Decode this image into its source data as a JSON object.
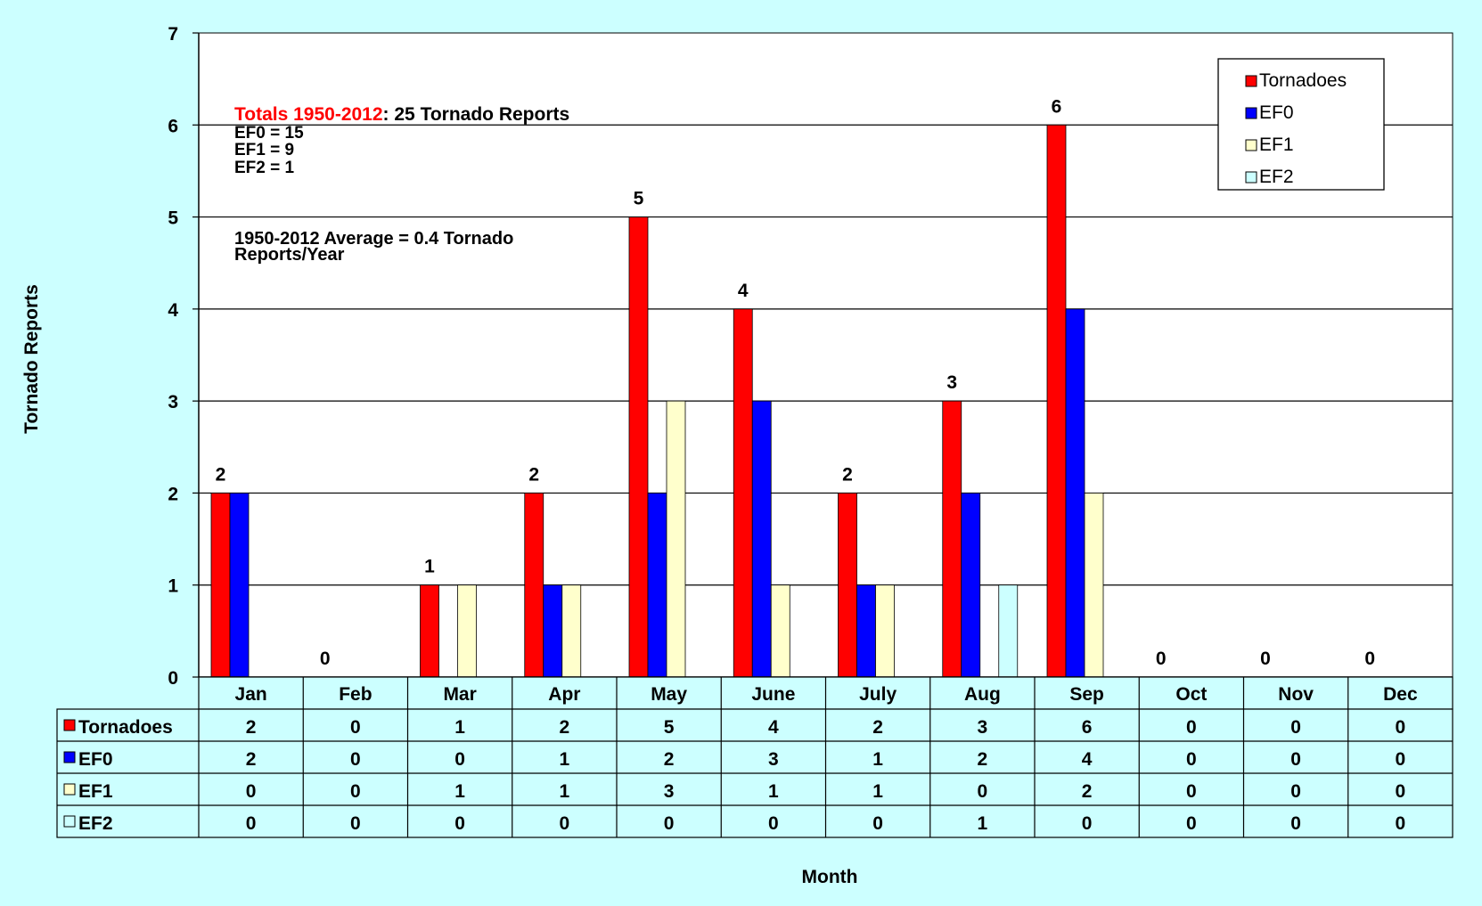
{
  "chart_data": {
    "type": "bar",
    "xlabel": "Month",
    "ylabel": "Tornado Reports",
    "ylim": [
      0,
      7
    ],
    "yticks": [
      0,
      1,
      2,
      3,
      4,
      5,
      6,
      7
    ],
    "grid": true,
    "legend_position": "top-right",
    "categories": [
      "Jan",
      "Feb",
      "Mar",
      "Apr",
      "May",
      "June",
      "July",
      "Aug",
      "Sep",
      "Oct",
      "Nov",
      "Dec"
    ],
    "series": [
      {
        "name": "Tornadoes",
        "color": "#ff0000",
        "values": [
          2,
          0,
          1,
          2,
          5,
          4,
          2,
          3,
          6,
          0,
          0,
          0
        ]
      },
      {
        "name": "EF0",
        "color": "#0000ff",
        "values": [
          2,
          0,
          0,
          1,
          2,
          3,
          1,
          2,
          4,
          0,
          0,
          0
        ]
      },
      {
        "name": "EF1",
        "color": "#ffffcc",
        "values": [
          0,
          0,
          1,
          1,
          3,
          1,
          1,
          0,
          2,
          0,
          0,
          0
        ]
      },
      {
        "name": "EF2",
        "color": "#ccffff",
        "values": [
          0,
          0,
          0,
          0,
          0,
          0,
          0,
          1,
          0,
          0,
          0,
          0
        ]
      }
    ],
    "data_labels": [
      2,
      0,
      1,
      2,
      5,
      4,
      2,
      3,
      6,
      0,
      0,
      0
    ],
    "annotations": {
      "totals_label": "Totals 1950-2012",
      "totals_rest": ": 25 Tornado Reports",
      "ef0": "EF0 = 15",
      "ef1": "EF1 = 9",
      "ef2": "EF2 = 1",
      "average_line1": "1950-2012 Average = 0.4 Tornado",
      "average_line2": "Reports/Year"
    },
    "data_table": true
  },
  "colors": {
    "background": "#ccffff",
    "plot_background": "#ffffff",
    "annotation_highlight": "#ff0000"
  }
}
